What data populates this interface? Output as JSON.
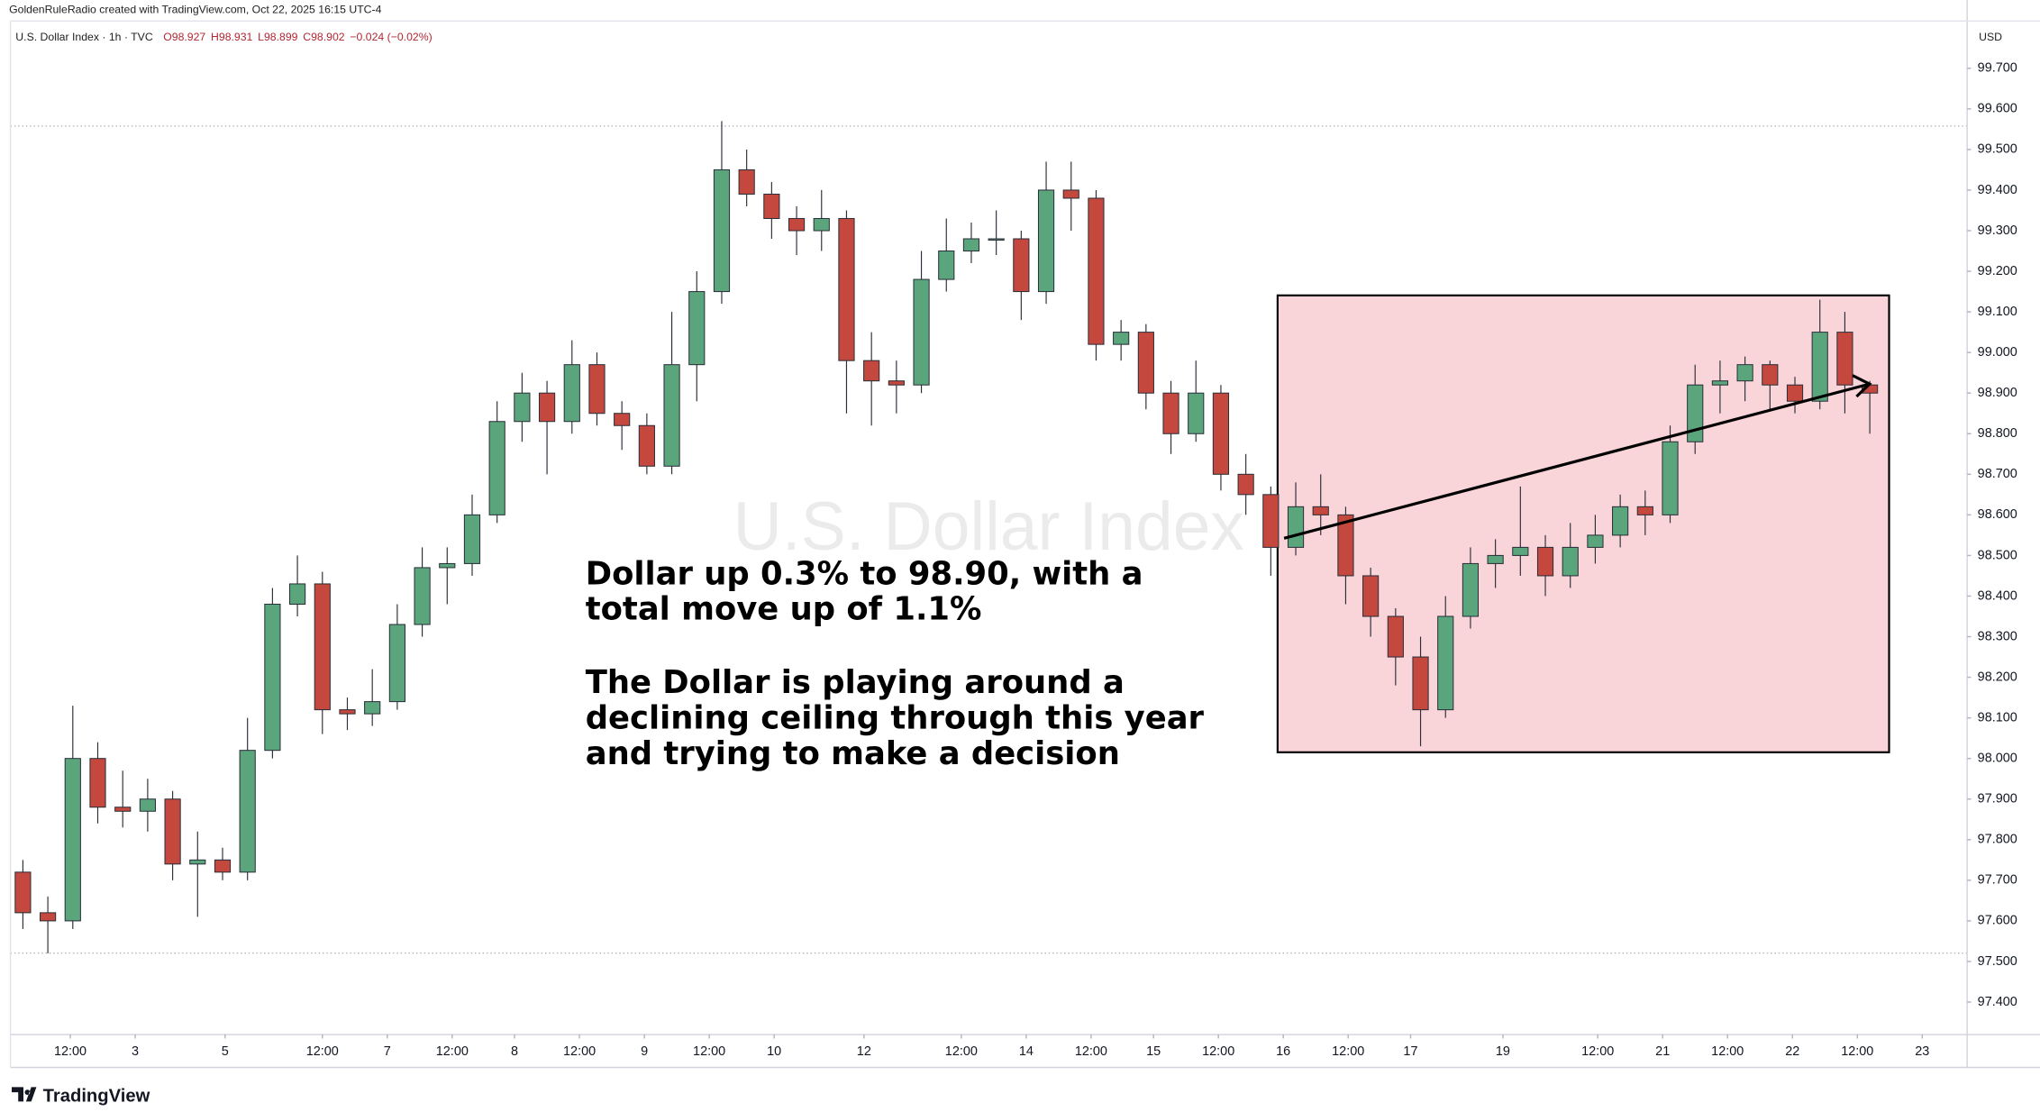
{
  "chart_data": {
    "type": "candlestick",
    "header": "GoldenRuleRadio created with TradingView.com, Oct 22, 2025 16:15 UTC-4",
    "symbol": "U.S. Dollar Index · 1h · TVC",
    "ohlc_labels": [
      "O98.927",
      "H98.931",
      "L98.899",
      "C98.902",
      "−0.024 (−0.02%)"
    ],
    "currency": "USD",
    "watermark": "U.S. Dollar Index",
    "annotation": [
      "Dollar up 0.3% to 98.90, with a",
      "total move up of 1.1%",
      "The Dollar is playing around a",
      "declining ceiling through this year",
      "and trying to make a decision"
    ],
    "logo": "TradingView",
    "up_color": "#5aa57c",
    "down_color": "#c4483d",
    "open": [
      97.72,
      97.62,
      97.6,
      98.0,
      97.88,
      97.87,
      97.9,
      97.74,
      97.75,
      97.72,
      98.02,
      98.38,
      98.43,
      98.12,
      98.11,
      98.14,
      98.33,
      98.47,
      98.48,
      98.6,
      98.83,
      98.9,
      98.83,
      98.97,
      98.85,
      98.82,
      98.72,
      98.97,
      99.15,
      99.45,
      99.39,
      99.33,
      99.3,
      99.33,
      98.98,
      98.93,
      98.92,
      99.18,
      99.25,
      99.28,
      99.28,
      99.15,
      99.4,
      99.38,
      99.02,
      99.05,
      98.9,
      98.8,
      98.9,
      98.7,
      98.65,
      98.52,
      98.62,
      98.6,
      98.45,
      98.35,
      98.25,
      98.12,
      98.35,
      98.48,
      98.5,
      98.52,
      98.45,
      98.52,
      98.55,
      98.62,
      98.6,
      98.78,
      98.92,
      98.93,
      98.97,
      98.92,
      98.88,
      99.05,
      98.92
    ],
    "high": [
      97.75,
      97.66,
      98.13,
      98.04,
      97.97,
      97.95,
      97.92,
      97.82,
      97.78,
      98.1,
      98.42,
      98.5,
      98.46,
      98.15,
      98.22,
      98.38,
      98.52,
      98.52,
      98.65,
      98.88,
      98.95,
      98.93,
      99.03,
      99.0,
      98.88,
      98.85,
      99.1,
      99.2,
      99.57,
      99.5,
      99.42,
      99.36,
      99.4,
      99.35,
      99.05,
      98.98,
      99.25,
      99.33,
      99.32,
      99.35,
      99.3,
      99.47,
      99.47,
      99.4,
      99.08,
      99.07,
      98.93,
      98.98,
      98.92,
      98.75,
      98.67,
      98.68,
      98.7,
      98.62,
      98.47,
      98.37,
      98.3,
      98.4,
      98.52,
      98.54,
      98.67,
      98.55,
      98.58,
      98.6,
      98.65,
      98.66,
      98.82,
      98.97,
      98.98,
      98.99,
      98.98,
      98.94,
      99.13,
      99.1,
      98.93
    ],
    "low": [
      97.58,
      97.52,
      97.58,
      97.84,
      97.83,
      97.82,
      97.7,
      97.61,
      97.7,
      97.7,
      98.0,
      98.35,
      98.06,
      98.07,
      98.08,
      98.12,
      98.3,
      98.38,
      98.45,
      98.58,
      98.78,
      98.7,
      98.8,
      98.82,
      98.76,
      98.7,
      98.7,
      98.88,
      99.12,
      99.36,
      99.28,
      99.24,
      99.25,
      98.85,
      98.82,
      98.85,
      98.9,
      99.15,
      99.22,
      99.24,
      99.08,
      99.12,
      99.3,
      98.98,
      98.98,
      98.86,
      98.75,
      98.78,
      98.66,
      98.6,
      98.45,
      98.5,
      98.55,
      98.38,
      98.3,
      98.18,
      98.03,
      98.1,
      98.32,
      98.42,
      98.45,
      98.4,
      98.42,
      98.48,
      98.52,
      98.55,
      98.58,
      98.75,
      98.85,
      98.88,
      98.86,
      98.85,
      98.86,
      98.85,
      98.8
    ],
    "close": [
      97.62,
      97.6,
      98.0,
      97.88,
      97.87,
      97.9,
      97.74,
      97.75,
      97.72,
      98.02,
      98.38,
      98.43,
      98.12,
      98.11,
      98.14,
      98.33,
      98.47,
      98.48,
      98.6,
      98.83,
      98.9,
      98.83,
      98.97,
      98.85,
      98.82,
      98.72,
      98.97,
      99.15,
      99.45,
      99.39,
      99.33,
      99.3,
      99.33,
      98.98,
      98.93,
      98.92,
      99.18,
      99.25,
      99.28,
      99.28,
      99.15,
      99.4,
      99.38,
      99.02,
      99.05,
      98.9,
      98.8,
      98.9,
      98.7,
      98.65,
      98.52,
      98.62,
      98.6,
      98.45,
      98.35,
      98.25,
      98.12,
      98.35,
      98.48,
      98.5,
      98.52,
      98.45,
      98.52,
      98.55,
      98.62,
      98.6,
      98.78,
      98.92,
      98.93,
      98.97,
      98.92,
      98.88,
      99.05,
      98.92,
      98.9
    ],
    "xlim": [
      -0.5,
      77.9
    ],
    "xticks": [
      {
        "value": 1.9,
        "label": "12:00"
      },
      {
        "value": 4.5,
        "label": "3"
      },
      {
        "value": 8.1,
        "label": "5"
      },
      {
        "value": 12,
        "label": "12:00"
      },
      {
        "value": 14.6,
        "label": "7"
      },
      {
        "value": 17.2,
        "label": "12:00"
      },
      {
        "value": 19.7,
        "label": "8"
      },
      {
        "value": 22.3,
        "label": "12:00"
      },
      {
        "value": 24.9,
        "label": "9"
      },
      {
        "value": 27.5,
        "label": "12:00"
      },
      {
        "value": 30.1,
        "label": "10"
      },
      {
        "value": 33.7,
        "label": "12"
      },
      {
        "value": 37.6,
        "label": "12:00"
      },
      {
        "value": 40.2,
        "label": "14"
      },
      {
        "value": 42.8,
        "label": "12:00"
      },
      {
        "value": 45.3,
        "label": "15"
      },
      {
        "value": 47.9,
        "label": "12:00"
      },
      {
        "value": 50.5,
        "label": "16"
      },
      {
        "value": 53.1,
        "label": "12:00"
      },
      {
        "value": 55.6,
        "label": "17"
      },
      {
        "value": 59.3,
        "label": "19"
      },
      {
        "value": 63.1,
        "label": "12:00"
      },
      {
        "value": 65.7,
        "label": "21"
      },
      {
        "value": 68.3,
        "label": "12:00"
      },
      {
        "value": 70.9,
        "label": "22"
      },
      {
        "value": 73.5,
        "label": "12:00"
      },
      {
        "value": 76.1,
        "label": "23"
      }
    ],
    "ylim": [
      97.32,
      99.81
    ],
    "yticks": [
      {
        "value": 97.4,
        "label": "97.400"
      },
      {
        "value": 97.5,
        "label": "97.500"
      },
      {
        "value": 97.6,
        "label": "97.600"
      },
      {
        "value": 97.7,
        "label": "97.700"
      },
      {
        "value": 97.8,
        "label": "97.800"
      },
      {
        "value": 97.9,
        "label": "97.900"
      },
      {
        "value": 98,
        "label": "98.000"
      },
      {
        "value": 98.1,
        "label": "98.100"
      },
      {
        "value": 98.2,
        "label": "98.200"
      },
      {
        "value": 98.3,
        "label": "98.300"
      },
      {
        "value": 98.4,
        "label": "98.400"
      },
      {
        "value": 98.5,
        "label": "98.500"
      },
      {
        "value": 98.6,
        "label": "98.600"
      },
      {
        "value": 98.7,
        "label": "98.700"
      },
      {
        "value": 98.8,
        "label": "98.800"
      },
      {
        "value": 98.9,
        "label": "98.900"
      },
      {
        "value": 99,
        "label": "99.000"
      },
      {
        "value": 99.1,
        "label": "99.100"
      },
      {
        "value": 99.2,
        "label": "99.200"
      },
      {
        "value": 99.3,
        "label": "99.300"
      },
      {
        "value": 99.4,
        "label": "99.400"
      },
      {
        "value": 99.5,
        "label": "99.500"
      },
      {
        "value": 99.6,
        "label": "99.600"
      },
      {
        "value": 99.7,
        "label": "99.700"
      }
    ],
    "grid": false
  }
}
